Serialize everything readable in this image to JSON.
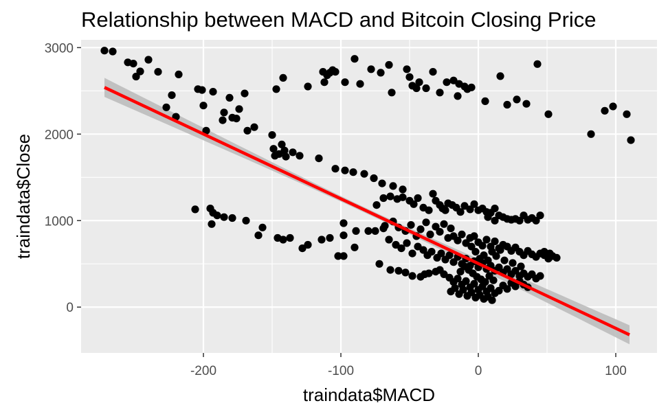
{
  "chart_data": {
    "type": "scatter",
    "title": "Relationship between MACD and Bitcoin Closing Price",
    "xlabel": "traindata$MACD",
    "ylabel": "traindata$Close",
    "xlim": [
      -289,
      130
    ],
    "ylim": [
      -530,
      3090
    ],
    "x_ticks": [
      -200,
      -100,
      0,
      100
    ],
    "x_tick_labels": [
      "-200",
      "-100",
      "0",
      "100"
    ],
    "y_ticks": [
      0,
      1000,
      2000,
      3000
    ],
    "y_tick_labels": [
      "0",
      "1000",
      "2000",
      "3000"
    ],
    "grid": true,
    "legend": "none",
    "colors": {
      "panel": "#ebebeb",
      "gridline": "#ffffff",
      "points": "#000000",
      "fit_line": "#ff0000",
      "confidence_band": "#bdbdbd"
    },
    "fit_line": {
      "method": "linear",
      "x": [
        -272,
        110
      ],
      "y": [
        2540,
        -320
      ],
      "ci_halfwidth_at_ends": 110,
      "ci_halfwidth_at_center": 30
    },
    "points": [
      [
        -272,
        2965
      ],
      [
        -266,
        2955
      ],
      [
        -255,
        2830
      ],
      [
        -251,
        2815
      ],
      [
        -249,
        2665
      ],
      [
        -246,
        2725
      ],
      [
        -240,
        2860
      ],
      [
        -233,
        2720
      ],
      [
        -227,
        2310
      ],
      [
        -223,
        2450
      ],
      [
        -220,
        2200
      ],
      [
        -218,
        2690
      ],
      [
        -204,
        2520
      ],
      [
        -201,
        2510
      ],
      [
        -200,
        2330
      ],
      [
        -198,
        2040
      ],
      [
        -193,
        2490
      ],
      [
        -186,
        2160
      ],
      [
        -185,
        2250
      ],
      [
        -181,
        2420
      ],
      [
        -179,
        2190
      ],
      [
        -176,
        2180
      ],
      [
        -174,
        2290
      ],
      [
        -170,
        2470
      ],
      [
        -168,
        2040
      ],
      [
        -163,
        2080
      ],
      [
        -150,
        1990
      ],
      [
        -149,
        1830
      ],
      [
        -148,
        1750
      ],
      [
        -147,
        2520
      ],
      [
        -145,
        1770
      ],
      [
        -143,
        1880
      ],
      [
        -142,
        2650
      ],
      [
        -141,
        1810
      ],
      [
        -140,
        1740
      ],
      [
        -135,
        1790
      ],
      [
        -130,
        1750
      ],
      [
        -124,
        2550
      ],
      [
        -116,
        1720
      ],
      [
        -113,
        2720
      ],
      [
        -112,
        2600
      ],
      [
        -110,
        2680
      ],
      [
        -108,
        2710
      ],
      [
        -106,
        2740
      ],
      [
        -104,
        2720
      ],
      [
        -97,
        2600
      ],
      [
        -90,
        2870
      ],
      [
        -86,
        2580
      ],
      [
        -91,
        1560
      ],
      [
        -97,
        1580
      ],
      [
        -104,
        1600
      ],
      [
        -83,
        1540
      ],
      [
        -76,
        1490
      ],
      [
        -70,
        1430
      ],
      [
        -62,
        1400
      ],
      [
        -55,
        1360
      ],
      [
        -78,
        2750
      ],
      [
        -71,
        2710
      ],
      [
        -65,
        2800
      ],
      [
        -63,
        2480
      ],
      [
        -52,
        2750
      ],
      [
        -50,
        2660
      ],
      [
        -48,
        2560
      ],
      [
        -45,
        2530
      ],
      [
        -43,
        2600
      ],
      [
        -38,
        2530
      ],
      [
        -33,
        2720
      ],
      [
        -28,
        2480
      ],
      [
        -23,
        2600
      ],
      [
        -18,
        2620
      ],
      [
        -14,
        2580
      ],
      [
        -15,
        2440
      ],
      [
        -10,
        2550
      ],
      [
        -5,
        2540
      ],
      [
        -8,
        2520
      ],
      [
        5,
        2380
      ],
      [
        16,
        2670
      ],
      [
        21,
        2340
      ],
      [
        28,
        2400
      ],
      [
        35,
        2350
      ],
      [
        43,
        2810
      ],
      [
        51,
        2230
      ],
      [
        82,
        2000
      ],
      [
        92,
        2270
      ],
      [
        98,
        2320
      ],
      [
        108,
        2230
      ],
      [
        111,
        1930
      ],
      [
        -206,
        1130
      ],
      [
        -195,
        1140
      ],
      [
        -193,
        1090
      ],
      [
        -194,
        960
      ],
      [
        -190,
        1060
      ],
      [
        -185,
        1040
      ],
      [
        -179,
        1030
      ],
      [
        -169,
        1000
      ],
      [
        -160,
        830
      ],
      [
        -157,
        920
      ],
      [
        -146,
        800
      ],
      [
        -142,
        780
      ],
      [
        -137,
        800
      ],
      [
        -128,
        680
      ],
      [
        -124,
        720
      ],
      [
        -114,
        780
      ],
      [
        -108,
        800
      ],
      [
        -102,
        590
      ],
      [
        -98,
        970
      ],
      [
        -98,
        830
      ],
      [
        -98,
        590
      ],
      [
        -90,
        690
      ],
      [
        -89,
        880
      ],
      [
        -80,
        880
      ],
      [
        -75,
        880
      ],
      [
        -69,
        910
      ],
      [
        -72,
        500
      ],
      [
        -64,
        430
      ],
      [
        -58,
        420
      ],
      [
        -53,
        400
      ],
      [
        -48,
        360
      ],
      [
        -42,
        350
      ],
      [
        -39,
        380
      ],
      [
        -36,
        390
      ],
      [
        -31,
        410
      ],
      [
        -28,
        430
      ],
      [
        -74,
        1180
      ],
      [
        -69,
        1260
      ],
      [
        -64,
        1280
      ],
      [
        -59,
        1250
      ],
      [
        -55,
        1270
      ],
      [
        -50,
        1230
      ],
      [
        -47,
        1190
      ],
      [
        -44,
        1260
      ],
      [
        -40,
        1150
      ],
      [
        -36,
        1120
      ],
      [
        -33,
        1310
      ],
      [
        -31,
        1230
      ],
      [
        -28,
        1180
      ],
      [
        -26,
        1140
      ],
      [
        -24,
        1120
      ],
      [
        -22,
        1200
      ],
      [
        -19,
        1180
      ],
      [
        -16,
        1150
      ],
      [
        -13,
        1100
      ],
      [
        -10,
        1170
      ],
      [
        -6,
        1130
      ],
      [
        -3,
        1190
      ],
      [
        0,
        1120
      ],
      [
        3,
        1140
      ],
      [
        6,
        1100
      ],
      [
        9,
        1090
      ],
      [
        12,
        1140
      ],
      [
        15,
        1060
      ],
      [
        18,
        1040
      ],
      [
        21,
        1020
      ],
      [
        24,
        1010
      ],
      [
        27,
        1020
      ],
      [
        30,
        1000
      ],
      [
        33,
        1060
      ],
      [
        36,
        1010
      ],
      [
        39,
        1030
      ],
      [
        42,
        1000
      ],
      [
        45,
        1060
      ],
      [
        7,
        1040
      ],
      [
        12,
        1000
      ],
      [
        -68,
        940
      ],
      [
        -62,
        990
      ],
      [
        -58,
        920
      ],
      [
        -53,
        880
      ],
      [
        -49,
        950
      ],
      [
        -45,
        820
      ],
      [
        -42,
        900
      ],
      [
        -38,
        980
      ],
      [
        -35,
        840
      ],
      [
        -31,
        930
      ],
      [
        -28,
        870
      ],
      [
        -25,
        960
      ],
      [
        -22,
        800
      ],
      [
        -20,
        910
      ],
      [
        -18,
        820
      ],
      [
        -15,
        770
      ],
      [
        -12,
        840
      ],
      [
        -9,
        740
      ],
      [
        -6,
        800
      ],
      [
        -3,
        820
      ],
      [
        0,
        750
      ],
      [
        3,
        710
      ],
      [
        6,
        780
      ],
      [
        9,
        700
      ],
      [
        12,
        760
      ],
      [
        15,
        680
      ],
      [
        18,
        720
      ],
      [
        21,
        700
      ],
      [
        24,
        650
      ],
      [
        27,
        690
      ],
      [
        30,
        640
      ],
      [
        33,
        600
      ],
      [
        36,
        650
      ],
      [
        39,
        610
      ],
      [
        42,
        580
      ],
      [
        45,
        620
      ],
      [
        48,
        600
      ],
      [
        51,
        560
      ],
      [
        54,
        590
      ],
      [
        57,
        570
      ],
      [
        48,
        640
      ],
      [
        52,
        620
      ],
      [
        -65,
        780
      ],
      [
        -60,
        720
      ],
      [
        -56,
        680
      ],
      [
        -52,
        740
      ],
      [
        -48,
        620
      ],
      [
        -44,
        700
      ],
      [
        -40,
        660
      ],
      [
        -37,
        600
      ],
      [
        -34,
        640
      ],
      [
        -30,
        570
      ],
      [
        -27,
        620
      ],
      [
        -24,
        550
      ],
      [
        -21,
        600
      ],
      [
        -18,
        520
      ],
      [
        -15,
        580
      ],
      [
        -12,
        500
      ],
      [
        -9,
        560
      ],
      [
        -6,
        480
      ],
      [
        -3,
        530
      ],
      [
        0,
        460
      ],
      [
        3,
        510
      ],
      [
        6,
        440
      ],
      [
        9,
        480
      ],
      [
        12,
        420
      ],
      [
        15,
        460
      ],
      [
        18,
        400
      ],
      [
        21,
        440
      ],
      [
        24,
        380
      ],
      [
        27,
        420
      ],
      [
        30,
        360
      ],
      [
        33,
        390
      ],
      [
        36,
        350
      ],
      [
        39,
        380
      ],
      [
        42,
        330
      ],
      [
        45,
        360
      ],
      [
        19,
        540
      ],
      [
        25,
        510
      ],
      [
        31,
        470
      ],
      [
        -25,
        380
      ],
      [
        -21,
        340
      ],
      [
        -18,
        290
      ],
      [
        -15,
        330
      ],
      [
        -12,
        260
      ],
      [
        -9,
        300
      ],
      [
        -6,
        230
      ],
      [
        -3,
        270
      ],
      [
        0,
        200
      ],
      [
        3,
        240
      ],
      [
        6,
        180
      ],
      [
        9,
        220
      ],
      [
        12,
        160
      ],
      [
        15,
        190
      ],
      [
        18,
        250
      ],
      [
        21,
        210
      ],
      [
        24,
        280
      ],
      [
        27,
        240
      ],
      [
        30,
        300
      ],
      [
        33,
        260
      ],
      [
        36,
        230
      ],
      [
        -20,
        180
      ],
      [
        -17,
        220
      ],
      [
        -14,
        150
      ],
      [
        -11,
        200
      ],
      [
        -8,
        130
      ],
      [
        -5,
        170
      ],
      [
        -2,
        110
      ],
      [
        1,
        140
      ],
      [
        4,
        95
      ],
      [
        7,
        120
      ],
      [
        10,
        80
      ],
      [
        -4,
        390
      ],
      [
        -1,
        350
      ],
      [
        2,
        320
      ],
      [
        5,
        290
      ],
      [
        8,
        360
      ],
      [
        11,
        310
      ],
      [
        -7,
        430
      ],
      [
        -10,
        470
      ],
      [
        -13,
        410
      ],
      [
        1,
        560
      ],
      [
        4,
        600
      ],
      [
        7,
        540
      ],
      [
        -2,
        640
      ],
      [
        -5,
        700
      ],
      [
        10,
        640
      ],
      [
        13,
        590
      ],
      [
        16,
        660
      ]
    ]
  }
}
